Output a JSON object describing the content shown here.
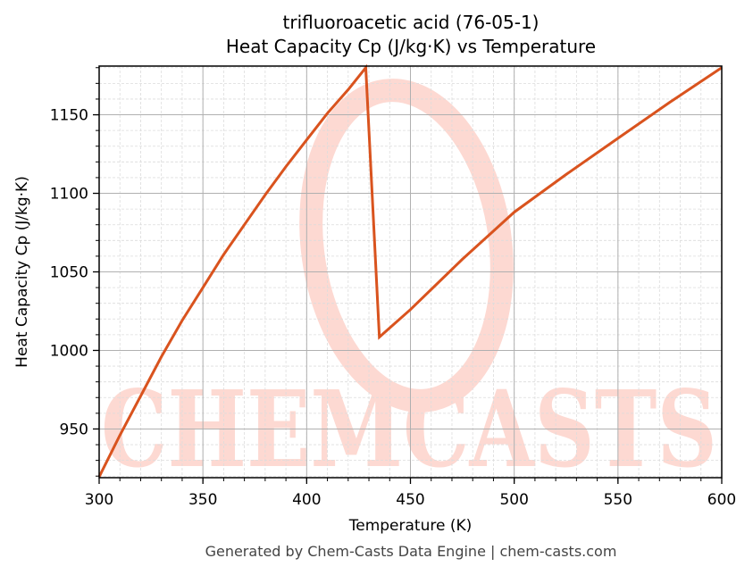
{
  "header": {
    "title_line1": "trifluoroacetic acid (76-05-1)",
    "title_line2": "Heat Capacity Cp (J/kg·K) vs Temperature"
  },
  "footer": {
    "text": "Generated by Chem-Casts Data Engine | chem-casts.com"
  },
  "watermark": {
    "text": "CHEMCASTS",
    "color": "#fdd9d2"
  },
  "colors": {
    "line": "#d9531e",
    "grid_major": "#b0b0b0",
    "grid_minor": "#dcdcdc",
    "axis": "#000000"
  },
  "chart_data": {
    "type": "line",
    "title": "trifluoroacetic acid (76-05-1)\nHeat Capacity Cp (J/kg·K) vs Temperature",
    "xlabel": "Temperature (K)",
    "ylabel": "Heat Capacity Cp (J/kg·K)",
    "xlim": [
      300,
      600
    ],
    "ylim": [
      919,
      1181
    ],
    "xticks": [
      300,
      350,
      400,
      450,
      500,
      550,
      600
    ],
    "yticks": [
      950,
      1000,
      1050,
      1100,
      1150
    ],
    "x_minor_step": 10,
    "y_minor_step": 10,
    "grid": true,
    "legend": null,
    "series": [
      {
        "name": "Cp",
        "color": "#d9531e",
        "x": [
          300,
          310,
          320,
          330,
          340,
          350,
          360,
          370,
          380,
          390,
          400,
          410,
          420,
          428.5,
          435,
          450,
          475,
          500,
          525,
          550,
          575,
          600
        ],
        "y": [
          919.5,
          946,
          971,
          996,
          1019,
          1040,
          1061,
          1080,
          1099,
          1117,
          1134,
          1151,
          1166,
          1180,
          1008.5,
          1026,
          1058,
          1088,
          1112,
          1135,
          1158,
          1180
        ]
      }
    ]
  }
}
